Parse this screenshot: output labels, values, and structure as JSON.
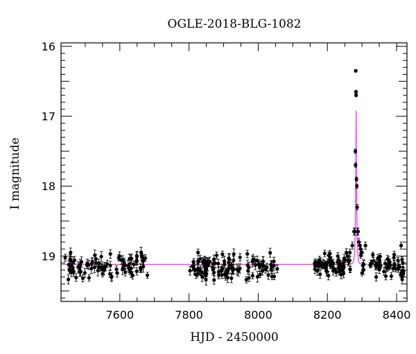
{
  "chart_data": {
    "type": "scatter",
    "title": "OGLE-2018-BLG-1082",
    "xlabel": "HJD - 2450000",
    "ylabel": "I magnitude",
    "xlim": [
      7430,
      8430
    ],
    "ylim": [
      19.65,
      15.95
    ],
    "y_inverted": true,
    "grid": false,
    "x_ticks": [
      7600,
      7800,
      8000,
      8200,
      8400
    ],
    "y_ticks": [
      16,
      17,
      18,
      19
    ],
    "colors": {
      "points": "#000000",
      "model": "#ff33ff",
      "frame": "#000000"
    },
    "series": [
      {
        "kind": "points_with_errorbars",
        "segments": [
          {
            "x_range": [
              7440,
              7680
            ],
            "y_mean": 19.15,
            "y_scatter": 0.09,
            "yerr": 0.06,
            "count": 90
          },
          {
            "x_range": [
              7800,
              8055
            ],
            "y_mean": 19.14,
            "y_scatter": 0.09,
            "yerr": 0.06,
            "count": 110
          },
          {
            "x_range": [
              8160,
              8270
            ],
            "y_mean": 19.13,
            "y_scatter": 0.07,
            "yerr": 0.05,
            "count": 70
          },
          {
            "x_range": [
              8295,
              8420
            ],
            "y_mean": 19.14,
            "y_scatter": 0.08,
            "yerr": 0.05,
            "count": 55
          }
        ],
        "peak_points": [
          {
            "x": 8265,
            "y": 18.95,
            "yerr": 0.05
          },
          {
            "x": 8272,
            "y": 18.85,
            "yerr": 0.05
          },
          {
            "x": 8277,
            "y": 18.65,
            "yerr": 0.05
          },
          {
            "x": 8279,
            "y": 18.65,
            "yerr": 0.05
          },
          {
            "x": 8281,
            "y": 17.5,
            "yerr": 0.03
          },
          {
            "x": 8281.5,
            "y": 17.7,
            "yerr": 0.03
          },
          {
            "x": 8282,
            "y": 16.35,
            "yerr": 0.02
          },
          {
            "x": 8282.5,
            "y": 16.65,
            "yerr": 0.02
          },
          {
            "x": 8283,
            "y": 16.7,
            "yerr": 0.02
          },
          {
            "x": 8284,
            "y": 17.9,
            "yerr": 0.03
          },
          {
            "x": 8285,
            "y": 18.0,
            "yerr": 0.03
          },
          {
            "x": 8286,
            "y": 18.3,
            "yerr": 0.04
          },
          {
            "x": 8287,
            "y": 18.65,
            "yerr": 0.05
          },
          {
            "x": 8289,
            "y": 18.65,
            "yerr": 0.05
          },
          {
            "x": 8291,
            "y": 18.8,
            "yerr": 0.05
          },
          {
            "x": 8294,
            "y": 18.85,
            "yerr": 0.05
          },
          {
            "x": 8296,
            "y": 18.9,
            "yerr": 0.05
          },
          {
            "x": 8298,
            "y": 18.95,
            "yerr": 0.05
          },
          {
            "x": 8230,
            "y": 19.0,
            "yerr": 0.05
          },
          {
            "x": 8258,
            "y": 19.0,
            "yerr": 0.05
          },
          {
            "x": 8300,
            "y": 18.95,
            "yerr": 0.05
          },
          {
            "x": 8310,
            "y": 18.85,
            "yerr": 0.05
          },
          {
            "x": 8393,
            "y": 18.98,
            "yerr": 0.05
          },
          {
            "x": 8413,
            "y": 18.85,
            "yerr": 0.05
          },
          {
            "x": 8418,
            "y": 19.1,
            "yerr": 0.05
          },
          {
            "x": 8420,
            "y": 19.22,
            "yerr": 0.05
          },
          {
            "x": 8416,
            "y": 19.3,
            "yerr": 0.05
          }
        ]
      },
      {
        "kind": "model_line",
        "baseline": 19.12,
        "t0": 8283,
        "peak": 16.92,
        "tE": 3.5,
        "u0": 0.13
      }
    ]
  }
}
